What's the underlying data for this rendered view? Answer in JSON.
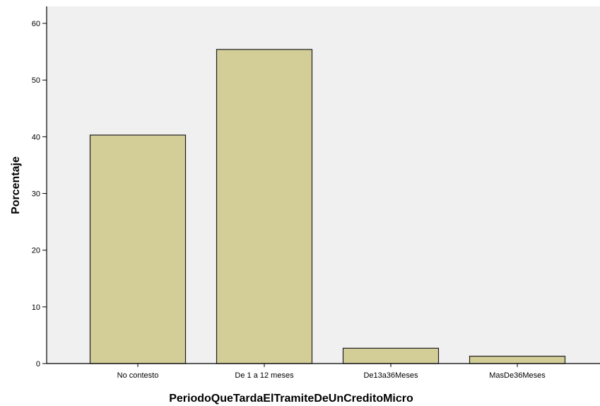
{
  "chart_data": {
    "type": "bar",
    "categories": [
      "No contesto",
      "De 1 a 12 meses",
      "De13a36Meses",
      "MasDe36Meses"
    ],
    "values": [
      40.3,
      55.4,
      2.7,
      1.3
    ],
    "xlabel": "PeriodoQueTardaElTramiteDeUnCreditoMicro",
    "ylabel": "Porcentaje",
    "ylim": [
      0,
      63
    ],
    "yticks": [
      0,
      10,
      20,
      30,
      40,
      50,
      60
    ],
    "grid": false,
    "colors": {
      "bar_fill": "#d3cd98",
      "bar_stroke": "#1e1e1e",
      "plot_background": "#f0f0f0",
      "axis": "#000000"
    }
  }
}
